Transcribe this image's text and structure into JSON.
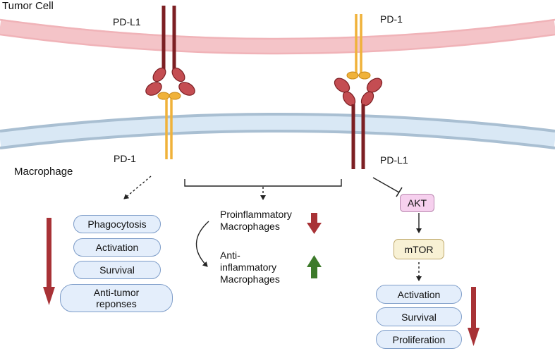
{
  "labels": {
    "tumor_cell": "Tumor Cell",
    "macrophage": "Macrophage",
    "pdl1_top": "PD-L1",
    "pd1_left": "PD-1",
    "pd1_top": "PD-1",
    "pdl1_right": "PD-L1"
  },
  "left_outcomes": [
    "Phagocytosis",
    "Activation",
    "Survival",
    "Anti-tumor\nreponses"
  ],
  "middle": {
    "pro": "Proinflammatory\nMacrophages",
    "anti": "Anti-\ninflammatory\nMacrophages"
  },
  "right_pathway": {
    "akt": "AKT",
    "mtor": "mTOR",
    "outcomes": [
      "Activation",
      "Survival",
      "Proliferation"
    ]
  },
  "colors": {
    "tumor_membrane": "#f5c9cc",
    "macrophage_membrane": "#c8dced",
    "pdl1": "#7c1f23",
    "pd1": "#f0b23a",
    "decrease_arrow": "#a83236",
    "increase_arrow": "#3c7a2a"
  }
}
